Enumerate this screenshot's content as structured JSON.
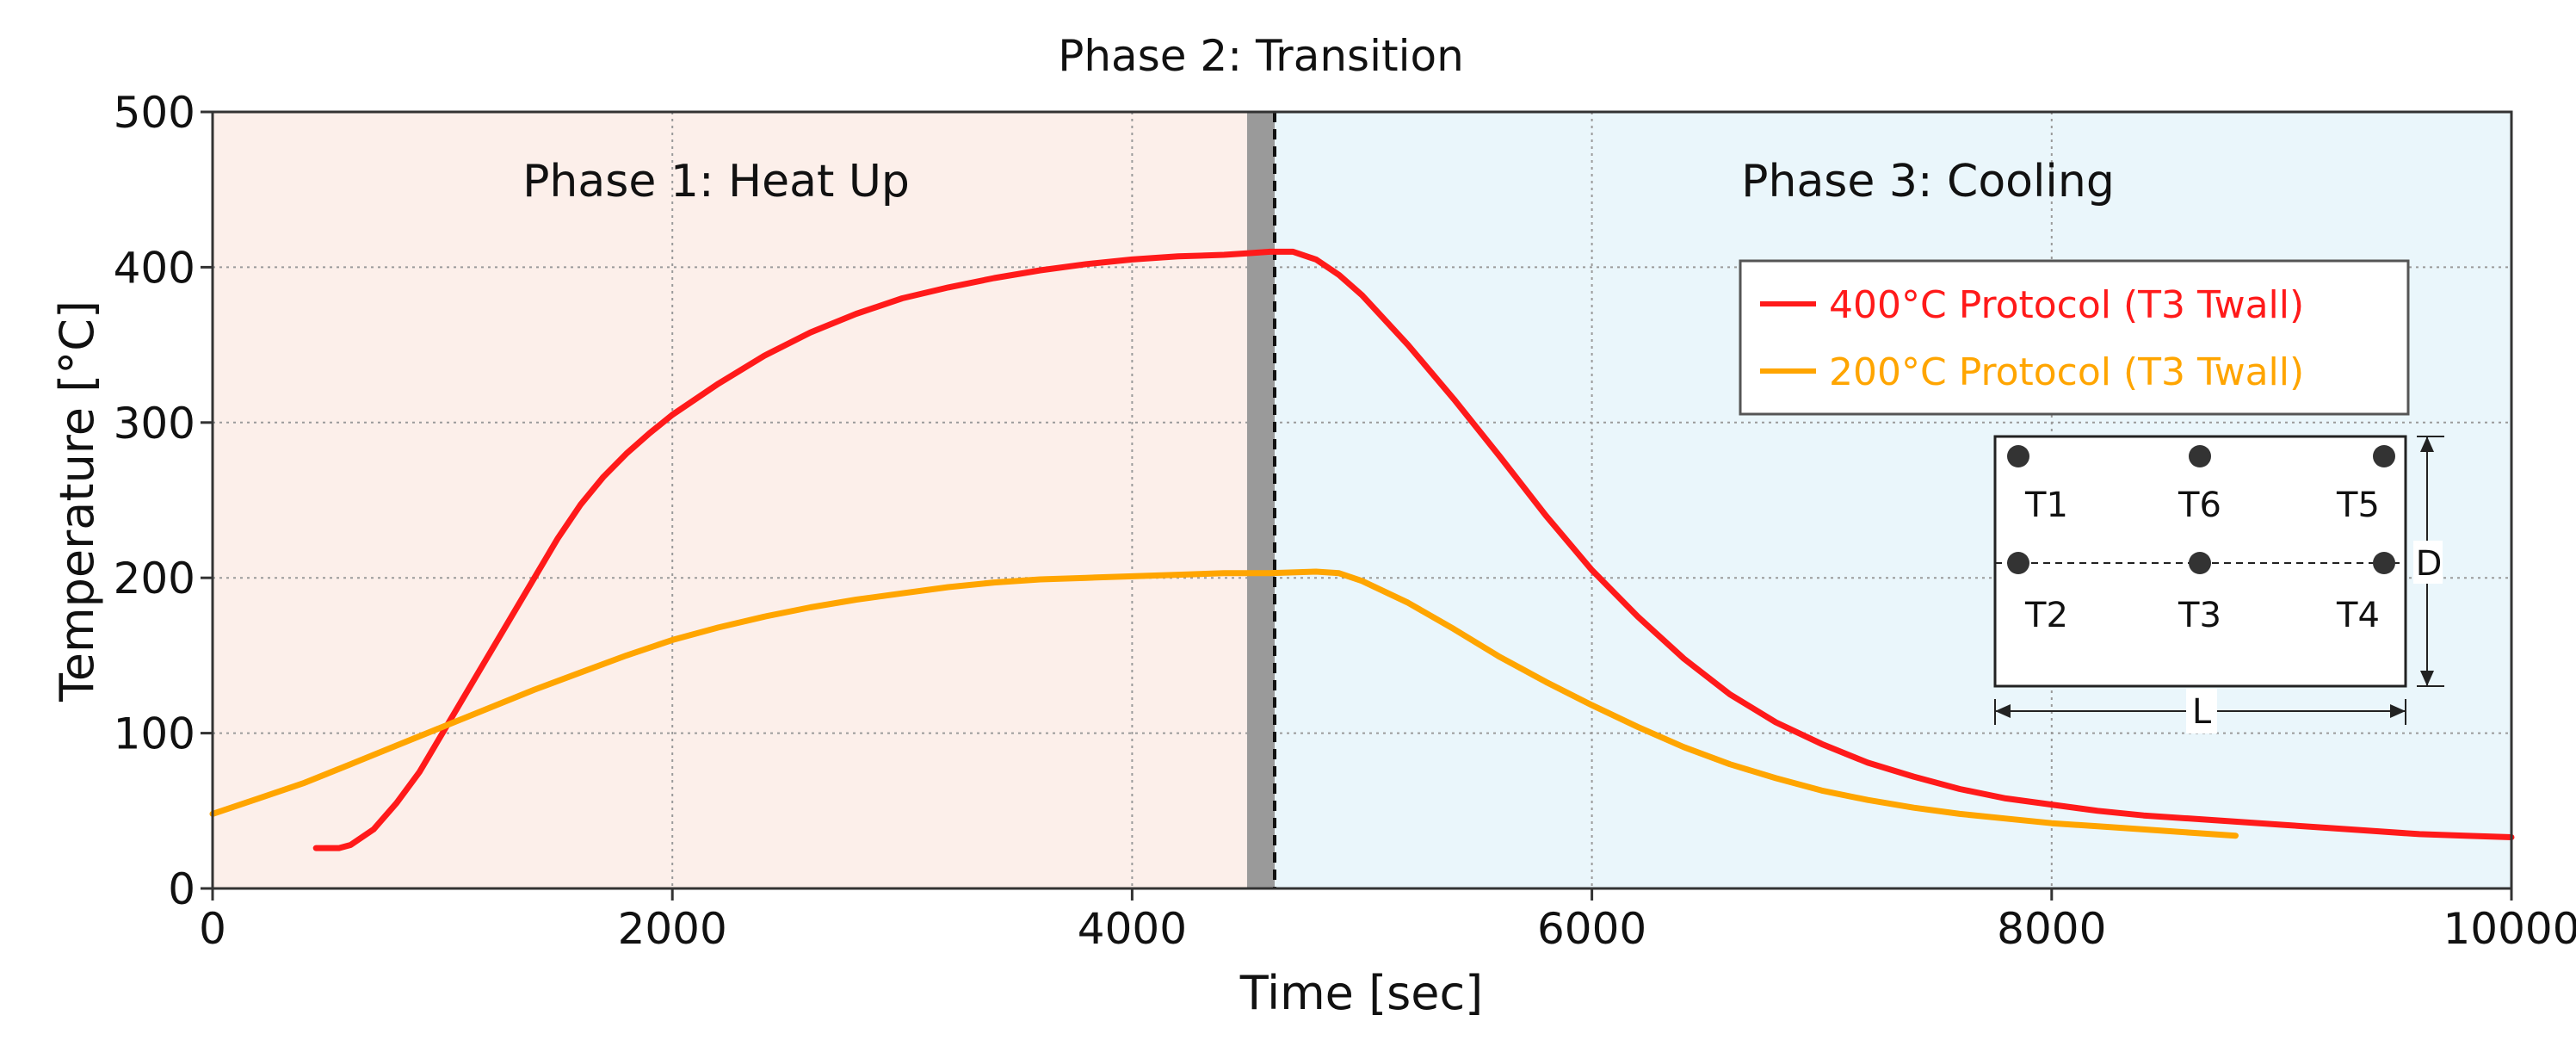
{
  "chart_data": {
    "type": "line",
    "title": "Phase 2: Transition",
    "xlabel": "Time [sec]",
    "ylabel": "Temperature [°C]",
    "xlim": [
      0,
      10000
    ],
    "ylim": [
      0,
      500
    ],
    "xticks": [
      0,
      2000,
      4000,
      6000,
      8000,
      10000
    ],
    "yticks": [
      0,
      100,
      200,
      300,
      400,
      500
    ],
    "grid": true,
    "phases": [
      {
        "name": "Phase 1: Heat Up",
        "x_start": 0,
        "x_end": 4500,
        "color": "#fcefea"
      },
      {
        "name": "Phase 2: Transition",
        "x_start": 4500,
        "x_end": 4620,
        "color": "#9a9a9a"
      },
      {
        "name": "Phase 3: Cooling",
        "x_start": 4620,
        "x_end": 10000,
        "color": "#eaf6fb"
      }
    ],
    "transition_line_x": 4620,
    "legend_position": "top-right",
    "series": [
      {
        "name": "400°C Protocol (T3 Twall)",
        "color": "#ff1a1a",
        "x": [
          450,
          550,
          600,
          700,
          800,
          900,
          1000,
          1100,
          1200,
          1300,
          1400,
          1500,
          1600,
          1700,
          1800,
          1900,
          2000,
          2200,
          2400,
          2600,
          2800,
          3000,
          3200,
          3400,
          3600,
          3800,
          4000,
          4200,
          4400,
          4500,
          4600,
          4700,
          4800,
          4900,
          5000,
          5200,
          5400,
          5600,
          5800,
          6000,
          6200,
          6400,
          6600,
          6800,
          7000,
          7200,
          7400,
          7600,
          7800,
          8000,
          8200,
          8400,
          8600,
          8800,
          9000,
          9200,
          9400,
          9600,
          9800,
          10000
        ],
        "values": [
          26,
          26,
          28,
          38,
          55,
          75,
          100,
          125,
          150,
          175,
          200,
          225,
          247,
          265,
          280,
          293,
          305,
          325,
          343,
          358,
          370,
          380,
          387,
          393,
          398,
          402,
          405,
          407,
          408,
          409,
          410,
          410,
          405,
          395,
          382,
          350,
          315,
          278,
          240,
          205,
          175,
          148,
          125,
          107,
          93,
          81,
          72,
          64,
          58,
          54,
          50,
          47,
          45,
          43,
          41,
          39,
          37,
          35,
          34,
          33
        ]
      },
      {
        "name": "200°C Protocol (T3 Twall)",
        "color": "#ffa500",
        "x": [
          0,
          200,
          400,
          600,
          800,
          1000,
          1200,
          1400,
          1600,
          1800,
          2000,
          2200,
          2400,
          2600,
          2800,
          3000,
          3200,
          3400,
          3600,
          3800,
          4000,
          4200,
          4400,
          4600,
          4800,
          4900,
          5000,
          5200,
          5400,
          5600,
          5800,
          6000,
          6200,
          6400,
          6600,
          6800,
          7000,
          7200,
          7400,
          7600,
          7800,
          8000,
          8200,
          8400,
          8600,
          8800
        ],
        "values": [
          48,
          58,
          68,
          80,
          92,
          104,
          116,
          128,
          139,
          150,
          160,
          168,
          175,
          181,
          186,
          190,
          194,
          197,
          199,
          200,
          201,
          202,
          203,
          203,
          204,
          203,
          198,
          184,
          167,
          149,
          133,
          118,
          104,
          91,
          80,
          71,
          63,
          57,
          52,
          48,
          45,
          42,
          40,
          38,
          36,
          34
        ]
      }
    ],
    "inset": {
      "labels": [
        "T1",
        "T6",
        "T5",
        "T2",
        "T3",
        "T4"
      ],
      "dimension_depth": "D",
      "dimension_length": "L"
    }
  }
}
